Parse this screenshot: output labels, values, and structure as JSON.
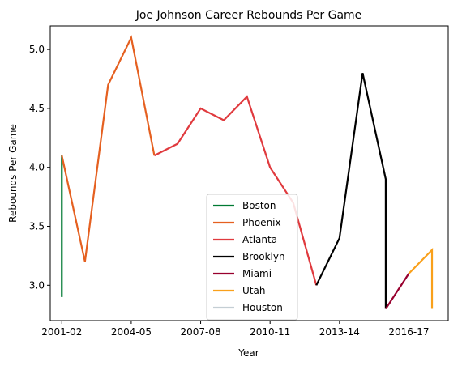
{
  "chart_data": {
    "type": "line",
    "title": "Joe Johnson  Career Rebounds Per Game",
    "xlabel": "Year",
    "ylabel": "Rebounds Per Game",
    "xlim": [
      -0.5,
      16.7
    ],
    "ylim": [
      2.7,
      5.2
    ],
    "x_ticks": [
      {
        "x": 0,
        "label": "2001-02"
      },
      {
        "x": 3,
        "label": "2004-05"
      },
      {
        "x": 6,
        "label": "2007-08"
      },
      {
        "x": 9,
        "label": "2010-11"
      },
      {
        "x": 12,
        "label": "2013-14"
      },
      {
        "x": 15,
        "label": "2016-17"
      }
    ],
    "y_ticks": [
      3.0,
      3.5,
      4.0,
      4.5,
      5.0
    ],
    "y_tick_labels": [
      "3.0",
      "3.5",
      "4.0",
      "4.5",
      "5.0"
    ],
    "legend_position": "bottom-center",
    "series": [
      {
        "name": "Boston",
        "color": "#007a33",
        "points": [
          [
            0,
            2.9
          ],
          [
            0,
            4.1
          ]
        ]
      },
      {
        "name": "Phoenix",
        "color": "#e56020",
        "points": [
          [
            0,
            4.1
          ],
          [
            1,
            3.2
          ],
          [
            2,
            4.7
          ],
          [
            3,
            5.1
          ],
          [
            4,
            4.1
          ]
        ]
      },
      {
        "name": "Atlanta",
        "color": "#e03a3e",
        "points": [
          [
            4,
            4.1
          ],
          [
            5,
            4.2
          ],
          [
            6,
            4.5
          ],
          [
            7,
            4.4
          ],
          [
            8,
            4.6
          ],
          [
            9,
            4.0
          ],
          [
            10,
            3.7
          ],
          [
            11,
            3.0
          ]
        ]
      },
      {
        "name": "Brooklyn",
        "color": "#000000",
        "points": [
          [
            11,
            3.0
          ],
          [
            12,
            3.4
          ],
          [
            13,
            4.8
          ],
          [
            14,
            3.9
          ],
          [
            14,
            2.8
          ]
        ]
      },
      {
        "name": "Miami",
        "color": "#98002e",
        "points": [
          [
            14,
            2.8
          ],
          [
            15,
            3.1
          ]
        ]
      },
      {
        "name": "Utah",
        "color": "#f9a01b",
        "points": [
          [
            15,
            3.1
          ],
          [
            16,
            3.3
          ],
          [
            16,
            2.8
          ]
        ]
      },
      {
        "name": "Houston",
        "color": "#c4ced4",
        "points": []
      }
    ]
  }
}
